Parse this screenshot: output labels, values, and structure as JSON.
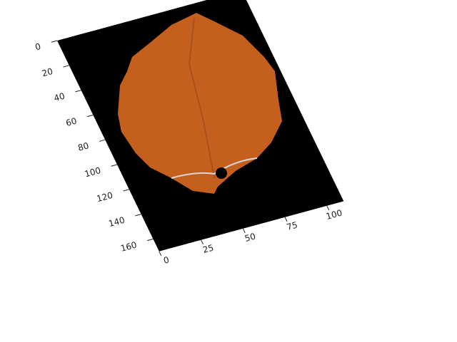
{
  "chart_data": {
    "type": "image",
    "xlim": [
      0,
      110
    ],
    "ylim": [
      170,
      0
    ],
    "xticks": [
      0,
      25,
      50,
      75,
      100
    ],
    "yticks": [
      0,
      20,
      40,
      60,
      80,
      100,
      120,
      140,
      160
    ],
    "background": "#000000"
  }
}
